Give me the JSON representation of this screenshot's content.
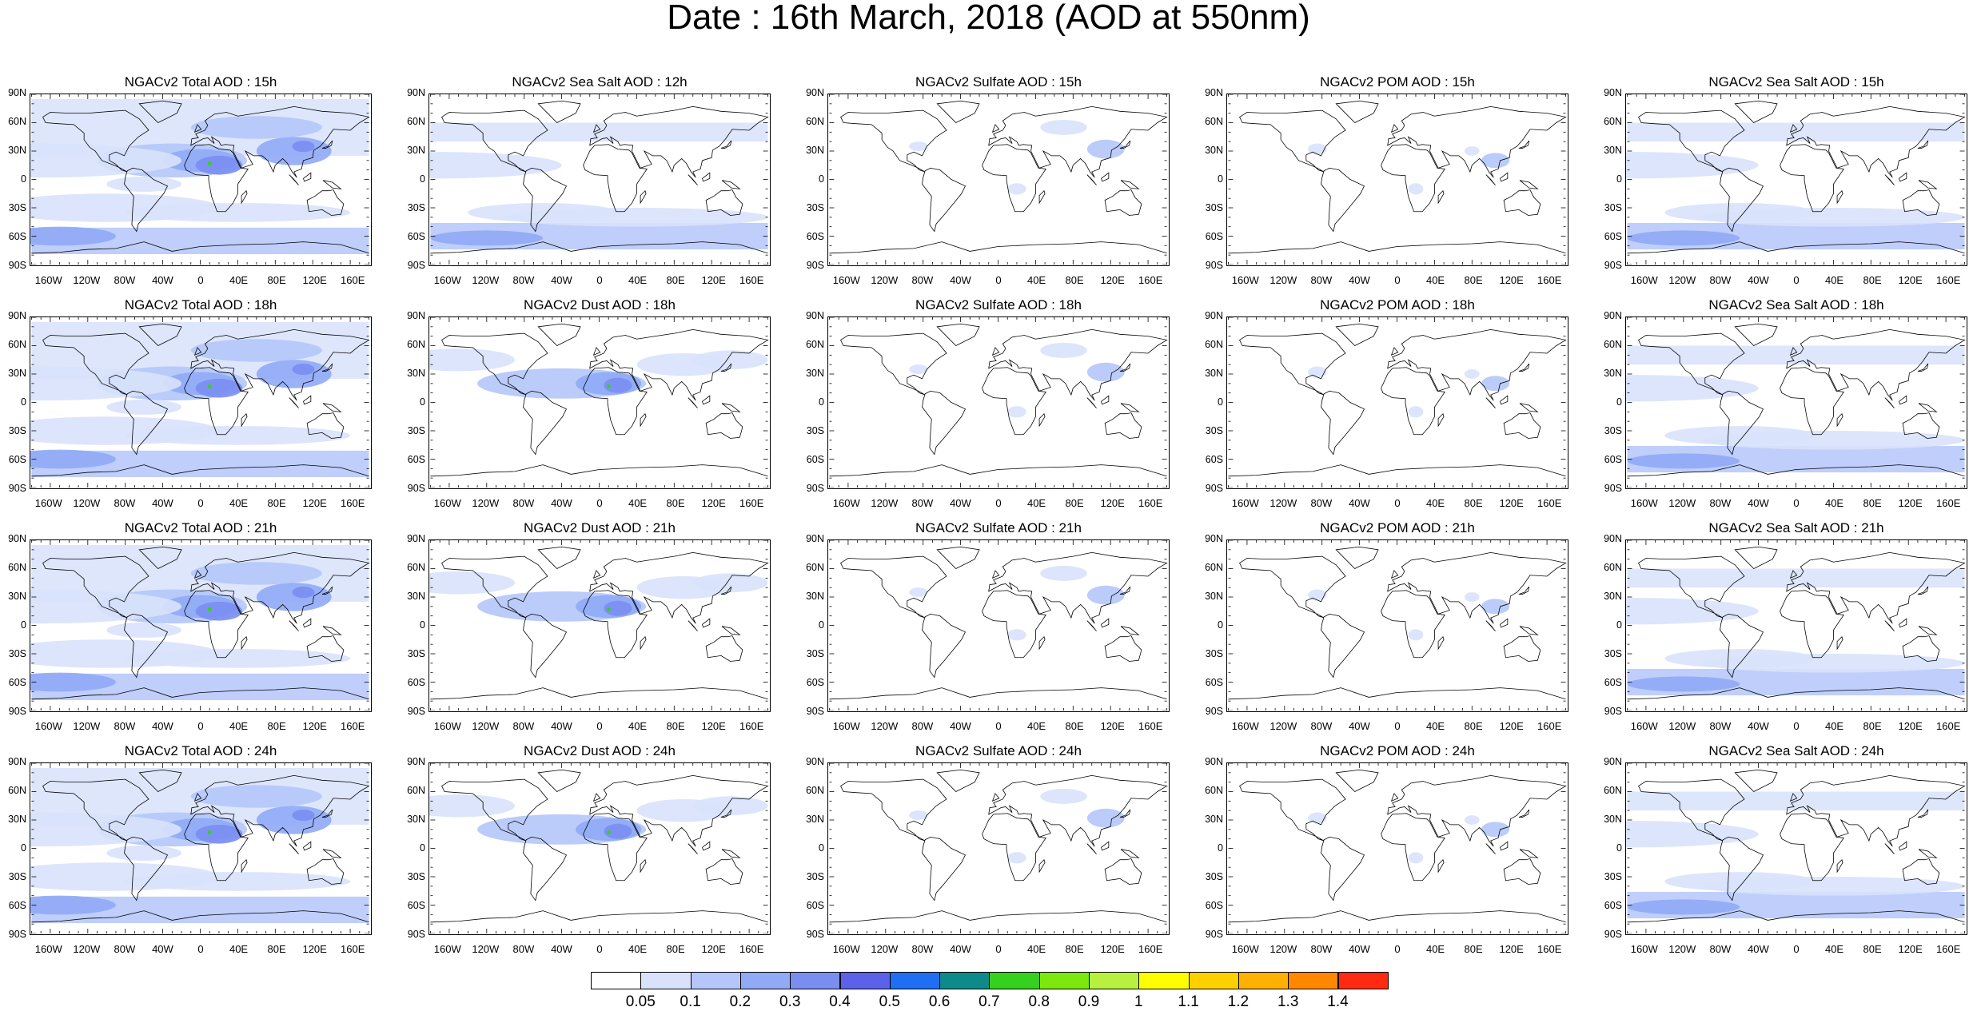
{
  "title": "Date : 16th March, 2018 (AOD at 550nm)",
  "panels": [
    [
      "NGACv2 Total AOD : 15h",
      "NGACv2 Sea Salt  AOD : 12h",
      "NGACv2 Sulfate AOD : 15h",
      "NGACv2 POM AOD : 15h",
      "NGACv2 Sea Salt AOD : 15h"
    ],
    [
      "NGACv2 Total AOD : 18h",
      "NGACv2 Dust AOD : 18h",
      "NGACv2 Sulfate AOD : 18h",
      "NGACv2 POM AOD : 18h",
      "NGACv2 Sea Salt AOD : 18h"
    ],
    [
      "NGACv2 Total AOD : 21h",
      "NGACv2 Dust AOD : 21h",
      "NGACv2 Sulfate AOD : 21h",
      "NGACv2 POM AOD : 21h",
      "NGACv2 Sea Salt AOD : 21h"
    ],
    [
      "NGACv2 Total AOD : 24h",
      "NGACv2 Dust AOD : 24h",
      "NGACv2 Sulfate AOD : 24h",
      "NGACv2 POM AOD : 24h",
      "NGACv2 Sea Salt  AOD : 24h"
    ]
  ],
  "lat_ticks": [
    "90N",
    "60N",
    "30N",
    "0",
    "30S",
    "60S",
    "90S"
  ],
  "lon_ticks": [
    "160W",
    "120W",
    "80W",
    "40W",
    "0",
    "40E",
    "80E",
    "120E",
    "160E"
  ],
  "colorbar": {
    "labels": [
      "0.05",
      "0.1",
      "0.2",
      "0.3",
      "0.4",
      "0.5",
      "0.6",
      "0.7",
      "0.8",
      "0.9",
      "1",
      "1.1",
      "1.2",
      "1.3",
      "1.4"
    ],
    "colors": [
      "#ffffff",
      "#d8e2fb",
      "#b4c6fa",
      "#90aaf6",
      "#7a8ef2",
      "#5c62e8",
      "#1f6ff2",
      "#0e8a8a",
      "#36d01e",
      "#7ce80e",
      "#b8f040",
      "#fffe00",
      "#ffd000",
      "#ffb000",
      "#ff8800",
      "#ff2a12"
    ]
  },
  "aod_shading": {
    "light": "#d8e2fb",
    "medium": "#b4c6fa",
    "strong": "#90aaf6",
    "dark": "#7a8ef2",
    "hotspot": "#36d01e"
  }
}
